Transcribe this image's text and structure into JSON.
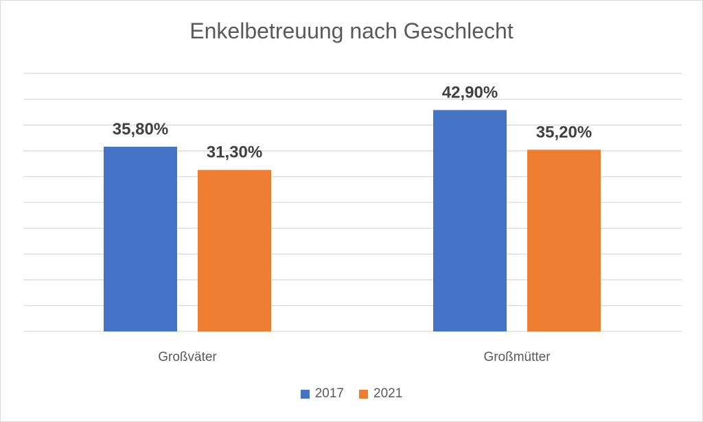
{
  "chart_data": {
    "type": "bar",
    "title": "Enkelbetreuung nach Geschlecht",
    "categories": [
      "Großväter",
      "Großmütter"
    ],
    "series": [
      {
        "name": "2017",
        "values": [
          35.8,
          42.9
        ],
        "labels": [
          "35,80%",
          "42,90%"
        ],
        "color": "#4472c4"
      },
      {
        "name": "2021",
        "values": [
          31.3,
          35.2
        ],
        "labels": [
          "31,30%",
          "35,20%"
        ],
        "color": "#ed7d31"
      }
    ],
    "ylim": [
      0,
      50
    ],
    "grid": true,
    "legend_position": "bottom",
    "xlabel": "",
    "ylabel": ""
  }
}
